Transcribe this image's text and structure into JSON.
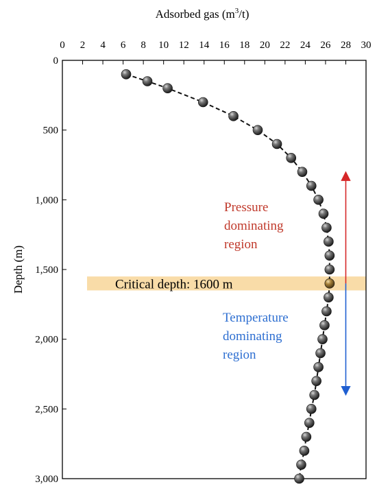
{
  "chart_data": {
    "type": "scatter",
    "xlabel": "Adsorbed gas (m",
    "xlabel_sup": "3",
    "xlabel_tail": "/t)",
    "ylabel": "Depth (m)",
    "xlim": [
      0,
      30
    ],
    "ylim": [
      0,
      3000
    ],
    "y_inverted": true,
    "x_axis_position": "top",
    "xticks": [
      0,
      2,
      4,
      6,
      8,
      10,
      12,
      14,
      16,
      18,
      20,
      22,
      24,
      26,
      28,
      30
    ],
    "yticks": [
      0,
      500,
      1000,
      1500,
      2000,
      2500,
      3000
    ],
    "ytick_labels": [
      "0",
      "500",
      "1,000",
      "1,500",
      "2,000",
      "2,500",
      "3,000"
    ],
    "grid": false,
    "series": [
      {
        "style": "gray spheres with dashed connecting line",
        "points": [
          {
            "x": 6.3,
            "y": 100
          },
          {
            "x": 8.4,
            "y": 150
          },
          {
            "x": 10.4,
            "y": 200
          },
          {
            "x": 13.9,
            "y": 300
          },
          {
            "x": 16.9,
            "y": 400
          },
          {
            "x": 19.3,
            "y": 500
          },
          {
            "x": 21.2,
            "y": 600
          },
          {
            "x": 22.6,
            "y": 700
          },
          {
            "x": 23.7,
            "y": 800
          },
          {
            "x": 24.6,
            "y": 900
          },
          {
            "x": 25.3,
            "y": 1000
          },
          {
            "x": 25.8,
            "y": 1100
          },
          {
            "x": 26.1,
            "y": 1200
          },
          {
            "x": 26.3,
            "y": 1300
          },
          {
            "x": 26.4,
            "y": 1400
          },
          {
            "x": 26.4,
            "y": 1500
          },
          {
            "x": 26.4,
            "y": 1600,
            "highlight": true
          },
          {
            "x": 26.3,
            "y": 1700
          },
          {
            "x": 26.1,
            "y": 1800
          },
          {
            "x": 25.9,
            "y": 1900
          },
          {
            "x": 25.7,
            "y": 2000
          },
          {
            "x": 25.5,
            "y": 2100
          },
          {
            "x": 25.3,
            "y": 2200
          },
          {
            "x": 25.1,
            "y": 2300
          },
          {
            "x": 24.9,
            "y": 2400
          },
          {
            "x": 24.6,
            "y": 2500
          },
          {
            "x": 24.4,
            "y": 2600
          },
          {
            "x": 24.1,
            "y": 2700
          },
          {
            "x": 23.9,
            "y": 2800
          },
          {
            "x": 23.6,
            "y": 2900
          },
          {
            "x": 23.4,
            "y": 3000
          }
        ]
      }
    ],
    "annotations": {
      "critical_band": {
        "label": "Critical depth: 1600 m",
        "y_range": [
          1550,
          1650
        ],
        "color": "#f9dca8"
      },
      "pressure_region": {
        "lines": [
          "Pressure",
          "dominating",
          "region"
        ],
        "color": "#c0392b"
      },
      "temperature_region": {
        "lines": [
          "Temperature",
          "dominating",
          "region"
        ],
        "color": "#2e6fd1"
      },
      "pressure_arrow": {
        "x": 28,
        "y_range": [
          800,
          1600
        ],
        "color": "#d62728"
      },
      "temperature_arrow": {
        "x": 28,
        "y_range": [
          1600,
          2400
        ],
        "color": "#1f5fd1"
      }
    },
    "colors": {
      "point": "#555555",
      "highlight_point": "#8a6a2a",
      "line": "#111111"
    }
  }
}
